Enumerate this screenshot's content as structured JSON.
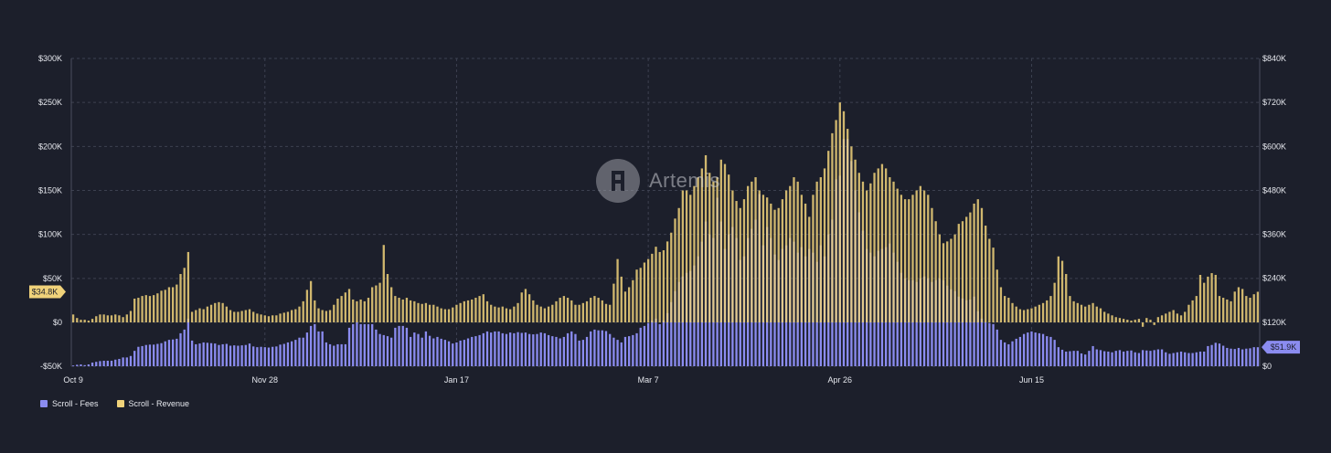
{
  "watermark": {
    "text": "Artemis",
    "icon": "artemis-logo-icon"
  },
  "legend": [
    {
      "label": "Scroll - Fees",
      "color": "#8b8cf0"
    },
    {
      "label": "Scroll - Revenue",
      "color": "#f0d27a"
    }
  ],
  "chart_data": {
    "type": "bar",
    "title": "",
    "xlabel": "",
    "ylabel": "",
    "colors": {
      "fees": "#8b8cf0",
      "revenue": "#f0d27a",
      "background": "#1c1f2b"
    },
    "grid": true,
    "x_tick_labels": [
      "Oct 9",
      "Nov 28",
      "Jan 17",
      "Mar 7",
      "Apr 26",
      "Jun 15"
    ],
    "left_axis": {
      "series": "Scroll - Revenue",
      "ylim": [
        -50000,
        300000
      ],
      "tick_labels": [
        "-$50K",
        "$0",
        "$50K",
        "$100K",
        "$150K",
        "$200K",
        "$250K",
        "$300K"
      ],
      "tick_values": [
        -50000,
        0,
        50000,
        100000,
        150000,
        200000,
        250000,
        300000
      ]
    },
    "right_axis": {
      "series": "Scroll - Fees",
      "ylim": [
        0,
        840000
      ],
      "tick_labels": [
        "$0",
        "$120K",
        "$240K",
        "$360K",
        "$480K",
        "$600K",
        "$720K",
        "$840K"
      ],
      "tick_values": [
        0,
        120000,
        240000,
        360000,
        480000,
        600000,
        720000,
        840000
      ]
    },
    "last_value_labels": {
      "revenue": "$34.8K",
      "fees": "$51.9K"
    },
    "series": [
      {
        "name": "Scroll - Fees",
        "axis": "right",
        "values": [
          2000,
          4000,
          5000,
          3000,
          5000,
          10000,
          12000,
          14000,
          15000,
          15000,
          15000,
          18000,
          20000,
          24000,
          24000,
          28000,
          42000,
          53000,
          55000,
          58000,
          59000,
          59000,
          61000,
          63000,
          68000,
          72000,
          73000,
          75000,
          90000,
          100000,
          130000,
          70000,
          60000,
          62000,
          65000,
          64000,
          63000,
          62000,
          58000,
          60000,
          61000,
          56000,
          57000,
          56000,
          57000,
          58000,
          62000,
          54000,
          52000,
          53000,
          52000,
          51000,
          53000,
          54000,
          59000,
          61000,
          65000,
          68000,
          72000,
          78000,
          78000,
          92000,
          110000,
          115000,
          95000,
          95000,
          65000,
          60000,
          56000,
          60000,
          60000,
          60000,
          105000,
          115000,
          120000,
          115000,
          115000,
          115000,
          115000,
          100000,
          88000,
          85000,
          82000,
          78000,
          105000,
          110000,
          110000,
          105000,
          80000,
          92000,
          88000,
          78000,
          95000,
          83000,
          76000,
          80000,
          75000,
          72000,
          68000,
          62000,
          65000,
          70000,
          72000,
          76000,
          80000,
          82000,
          85000,
          90000,
          95000,
          92000,
          95000,
          95000,
          90000,
          88000,
          92000,
          90000,
          93000,
          91000,
          92000,
          88000,
          87000,
          88000,
          92000,
          90000,
          85000,
          82000,
          80000,
          76000,
          80000,
          90000,
          95000,
          88000,
          70000,
          72000,
          80000,
          95000,
          100000,
          98000,
          98000,
          96000,
          88000,
          78000,
          72000,
          65000,
          80000,
          82000,
          85000,
          90000,
          105000,
          110000,
          118000,
          125000,
          130000,
          115000,
          125000,
          145000,
          175000,
          205000,
          230000,
          245000,
          255000,
          260000,
          275000,
          300000,
          340000,
          395000,
          360000,
          350000,
          460000,
          395000,
          320000,
          360000,
          380000,
          350000,
          290000,
          300000,
          350000,
          375000,
          400000,
          470000,
          330000,
          380000,
          350000,
          305000,
          290000,
          320000,
          330000,
          350000,
          340000,
          310000,
          325000,
          300000,
          320000,
          310000,
          285000,
          330000,
          300000,
          360000,
          400000,
          510000,
          520000,
          620000,
          620000,
          560000,
          480000,
          420000,
          370000,
          320000,
          310000,
          300000,
          315000,
          320000,
          325000,
          335000,
          310000,
          285000,
          255000,
          240000,
          235000,
          235000,
          230000,
          240000,
          245000,
          240000,
          230000,
          235000,
          240000,
          235000,
          220000,
          210000,
          205000,
          190000,
          185000,
          180000,
          182000,
          190000,
          150000,
          130000,
          120000,
          118000,
          115000,
          100000,
          72000,
          65000,
          60000,
          68000,
          75000,
          80000,
          88000,
          92000,
          95000,
          92000,
          90000,
          88000,
          82000,
          80000,
          72000,
          52000,
          45000,
          40000,
          41000,
          42000,
          42000,
          35000,
          32000,
          42000,
          55000,
          46000,
          44000,
          41000,
          40000,
          38000,
          42000,
          44000,
          40000,
          42000,
          43000,
          38000,
          36000,
          44000,
          43000,
          42000,
          44000,
          46000,
          46000,
          38000,
          34000,
          36000,
          38000,
          40000,
          38000,
          36000,
          36000,
          38000,
          40000,
          40000,
          55000,
          58000,
          64000,
          62000,
          56000,
          50000,
          48000,
          47000,
          50000,
          46000,
          48000,
          49000,
          52000,
          51900
        ]
      },
      {
        "name": "Scroll - Revenue",
        "axis": "left",
        "values": [
          9000,
          5000,
          3000,
          3000,
          2000,
          4000,
          7000,
          9000,
          9000,
          8000,
          8000,
          9000,
          8000,
          6000,
          9000,
          13000,
          27000,
          28000,
          30000,
          31000,
          30000,
          31000,
          33000,
          36000,
          37000,
          40000,
          40000,
          43000,
          55000,
          62000,
          80000,
          12000,
          14000,
          16000,
          15000,
          18000,
          20000,
          22000,
          23000,
          22000,
          18000,
          14000,
          12000,
          12000,
          13000,
          14000,
          15000,
          12000,
          10000,
          9000,
          8000,
          7000,
          8000,
          8000,
          10000,
          11000,
          12000,
          14000,
          15000,
          18000,
          24000,
          37000,
          47000,
          25000,
          16000,
          14000,
          13000,
          14000,
          20000,
          27000,
          30000,
          34000,
          38000,
          26000,
          24000,
          26000,
          24000,
          28000,
          40000,
          42000,
          45000,
          88000,
          55000,
          40000,
          30000,
          28000,
          26000,
          28000,
          25000,
          24000,
          22000,
          21000,
          22000,
          20000,
          20000,
          18000,
          16000,
          15000,
          15000,
          17000,
          20000,
          22000,
          24000,
          25000,
          26000,
          28000,
          30000,
          32000,
          24000,
          20000,
          18000,
          17000,
          18000,
          16000,
          15000,
          18000,
          22000,
          34000,
          38000,
          32000,
          25000,
          20000,
          18000,
          16000,
          18000,
          20000,
          24000,
          28000,
          30000,
          28000,
          25000,
          20000,
          20000,
          22000,
          24000,
          28000,
          30000,
          28000,
          25000,
          21000,
          20000,
          44000,
          72000,
          52000,
          35000,
          40000,
          48000,
          60000,
          62000,
          68000,
          72000,
          78000,
          86000,
          80000,
          82000,
          92000,
          102000,
          118000,
          130000,
          150000,
          150000,
          145000,
          155000,
          165000,
          175000,
          190000,
          170000,
          160000,
          165000,
          185000,
          180000,
          168000,
          150000,
          138000,
          130000,
          140000,
          155000,
          160000,
          165000,
          150000,
          145000,
          142000,
          135000,
          128000,
          130000,
          140000,
          150000,
          155000,
          165000,
          160000,
          145000,
          135000,
          120000,
          145000,
          160000,
          165000,
          175000,
          195000,
          215000,
          230000,
          250000,
          240000,
          220000,
          200000,
          185000,
          170000,
          160000,
          150000,
          158000,
          170000,
          175000,
          180000,
          175000,
          165000,
          160000,
          152000,
          145000,
          140000,
          140000,
          145000,
          150000,
          155000,
          150000,
          145000,
          130000,
          115000,
          100000,
          90000,
          92000,
          95000,
          100000,
          112000,
          115000,
          120000,
          125000,
          135000,
          140000,
          130000,
          110000,
          95000,
          85000,
          60000,
          40000,
          30000,
          28000,
          22000,
          18000,
          15000,
          14000,
          15000,
          16000,
          18000,
          20000,
          22000,
          25000,
          30000,
          45000,
          75000,
          70000,
          55000,
          30000,
          24000,
          22000,
          20000,
          18000,
          20000,
          22000,
          18000,
          16000,
          12000,
          10000,
          8000,
          6000,
          5000,
          4000,
          3000,
          2000,
          3000,
          4000,
          -5000,
          5000,
          3000,
          -3000,
          6000,
          8000,
          10000,
          12000,
          14000,
          10000,
          8000,
          12000,
          20000,
          25000,
          30000,
          54000,
          45000,
          52000,
          56000,
          54000,
          30000,
          28000,
          26000,
          24000,
          35000,
          40000,
          38000,
          30000,
          28000,
          32000,
          34800
        ]
      }
    ]
  }
}
